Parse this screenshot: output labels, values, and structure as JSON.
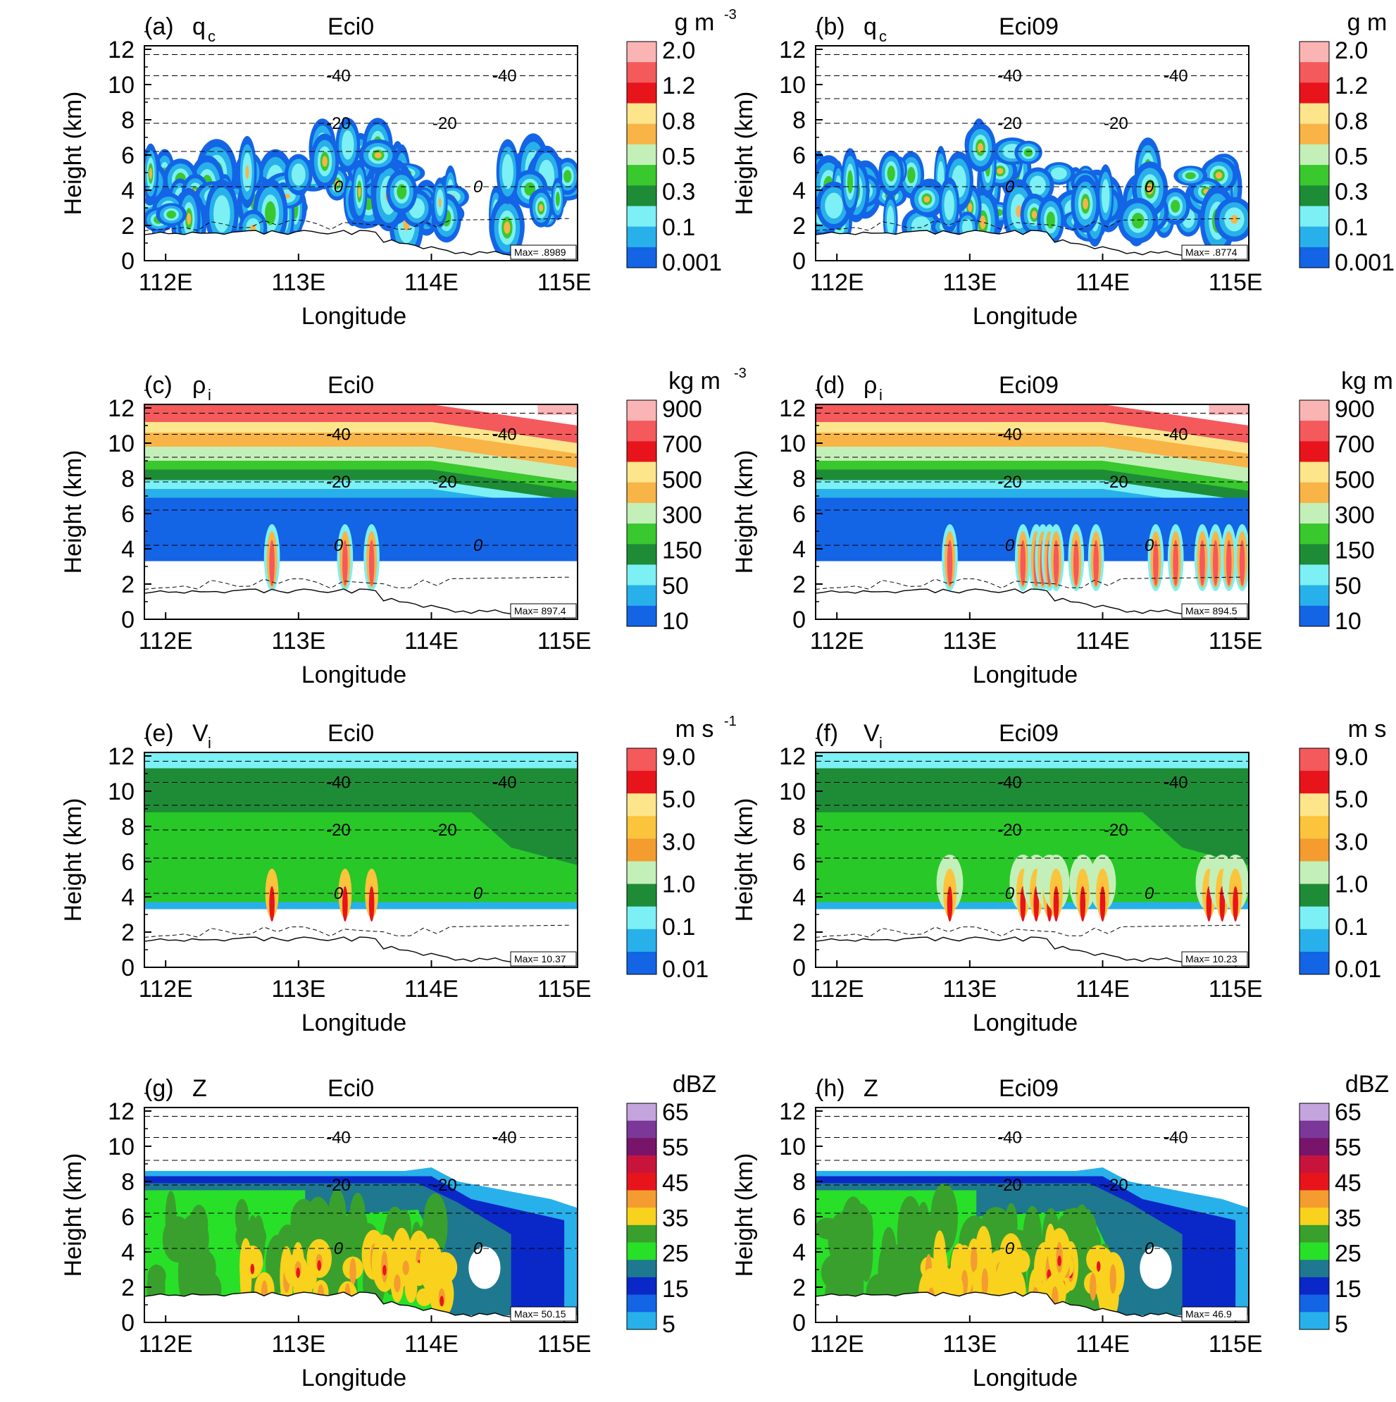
{
  "figure": {
    "panels": [
      {
        "id": "a",
        "tag": "(a)",
        "var": "q",
        "sub": "c",
        "exp": "Eci0",
        "max_label": "Max= .8989",
        "field": "qc",
        "scale": "qc"
      },
      {
        "id": "b",
        "tag": "(b)",
        "var": "q",
        "sub": "c",
        "exp": "Eci09",
        "max_label": "Max= .8774",
        "field": "qc",
        "scale": "qc"
      },
      {
        "id": "c",
        "tag": "(c)",
        "var": "ρ",
        "sub": "i",
        "exp": "Eci0",
        "max_label": "Max= 897.4",
        "field": "rho",
        "scale": "rho"
      },
      {
        "id": "d",
        "tag": "(d)",
        "var": "ρ",
        "sub": "i",
        "exp": "Eci09",
        "max_label": "Max= 894.5",
        "field": "rho",
        "scale": "rho"
      },
      {
        "id": "e",
        "tag": "(e)",
        "var": "V",
        "sub": "i",
        "exp": "Eci0",
        "max_label": "Max= 10.37",
        "field": "vi",
        "scale": "vi"
      },
      {
        "id": "f",
        "tag": "(f)",
        "var": "V",
        "sub": "i",
        "exp": "Eci09",
        "max_label": "Max= 10.23",
        "field": "vi",
        "scale": "vi"
      },
      {
        "id": "g",
        "tag": "(g)",
        "var": "Z",
        "sub": "",
        "exp": "Eci0",
        "max_label": "Max= 50.15",
        "field": "z",
        "scale": "z"
      },
      {
        "id": "h",
        "tag": "(h)",
        "var": "Z",
        "sub": "",
        "exp": "Eci09",
        "max_label": "Max= 46.9",
        "field": "z",
        "scale": "z"
      }
    ],
    "axes": {
      "ylabel": "Height (km)",
      "xlabel": "Longitude",
      "yticks": [
        "0",
        "2",
        "4",
        "6",
        "8",
        "10",
        "12"
      ],
      "xticks": [
        "112E",
        "113E",
        "114E",
        "115E"
      ]
    },
    "isotherm_labels": [
      "-40",
      "-20",
      "0"
    ],
    "colorbars": {
      "qc": {
        "unit": "g m",
        "unit_sup": "-3",
        "labels": [
          "2.0",
          "1.2",
          "0.8",
          "0.5",
          "0.3",
          "0.1",
          "0.001"
        ],
        "colors": [
          "#fbb4b4",
          "#f4595c",
          "#e8141c",
          "#fde58c",
          "#f8b447",
          "#c3f0b8",
          "#39c82d",
          "#1e8c37",
          "#7cf0f4",
          "#28b0ea",
          "#1464e6"
        ]
      },
      "rho": {
        "unit": "kg m",
        "unit_sup": "-3",
        "labels": [
          "900",
          "700",
          "500",
          "300",
          "150",
          "50",
          "10"
        ],
        "colors": [
          "#fbb4b4",
          "#f4595c",
          "#e8141c",
          "#fde58c",
          "#f8b447",
          "#c3f0b8",
          "#39c82d",
          "#1e8c37",
          "#7cf0f4",
          "#28b0ea",
          "#1464e6"
        ]
      },
      "vi": {
        "unit": "m s",
        "unit_sup": "-1",
        "labels": [
          "9.0",
          "5.0",
          "3.0",
          "1.0",
          "0.1",
          "0.01"
        ],
        "colors": [
          "#f4595c",
          "#e8141c",
          "#fde58c",
          "#fbc43c",
          "#f49c30",
          "#c3f0b8",
          "#1e8c37",
          "#7cf0f4",
          "#28b0ea",
          "#1464e6"
        ]
      },
      "z": {
        "unit": "dBZ",
        "unit_sup": "",
        "labels": [
          "65",
          "55",
          "45",
          "35",
          "25",
          "15",
          "5"
        ],
        "colors": [
          "#c4a4dc",
          "#7c3898",
          "#78146a",
          "#c8143c",
          "#e8141c",
          "#f49c30",
          "#f8d21c",
          "#39a02d",
          "#28e028",
          "#1e7890",
          "#0a28c8",
          "#1464e6",
          "#28b0ea"
        ]
      }
    },
    "chart_data": [
      {
        "type": "heatmap",
        "panel": "a",
        "title": "q_c Eci0",
        "unit": "g m^-3",
        "x_range": [
          "112E",
          "115E"
        ],
        "ylim": [
          0,
          12
        ],
        "max": 0.8989,
        "levels": [
          0.001,
          0.1,
          0.3,
          0.5,
          0.8,
          1.2,
          2.0
        ]
      },
      {
        "type": "heatmap",
        "panel": "b",
        "title": "q_c Eci09",
        "unit": "g m^-3",
        "x_range": [
          "112E",
          "115E"
        ],
        "ylim": [
          0,
          12
        ],
        "max": 0.8774,
        "levels": [
          0.001,
          0.1,
          0.3,
          0.5,
          0.8,
          1.2,
          2.0
        ]
      },
      {
        "type": "heatmap",
        "panel": "c",
        "title": "rho_i Eci0",
        "unit": "kg m^-3",
        "x_range": [
          "112E",
          "115E"
        ],
        "ylim": [
          0,
          12
        ],
        "max": 897.4,
        "levels": [
          10,
          50,
          150,
          300,
          500,
          700,
          900
        ]
      },
      {
        "type": "heatmap",
        "panel": "d",
        "title": "rho_i Eci09",
        "unit": "kg m^-3",
        "x_range": [
          "112E",
          "115E"
        ],
        "ylim": [
          0,
          12
        ],
        "max": 894.5,
        "levels": [
          10,
          50,
          150,
          300,
          500,
          700,
          900
        ]
      },
      {
        "type": "heatmap",
        "panel": "e",
        "title": "V_i Eci0",
        "unit": "m s^-1",
        "x_range": [
          "112E",
          "115E"
        ],
        "ylim": [
          0,
          12
        ],
        "max": 10.37,
        "levels": [
          0.01,
          0.1,
          1.0,
          3.0,
          5.0,
          9.0
        ]
      },
      {
        "type": "heatmap",
        "panel": "f",
        "title": "V_i Eci09",
        "unit": "m s^-1",
        "x_range": [
          "112E",
          "115E"
        ],
        "ylim": [
          0,
          12
        ],
        "max": 10.23,
        "levels": [
          0.01,
          0.1,
          1.0,
          3.0,
          5.0,
          9.0
        ]
      },
      {
        "type": "heatmap",
        "panel": "g",
        "title": "Z Eci0",
        "unit": "dBZ",
        "x_range": [
          "112E",
          "115E"
        ],
        "ylim": [
          0,
          12
        ],
        "max": 50.15,
        "levels": [
          5,
          15,
          25,
          35,
          45,
          55,
          65
        ]
      },
      {
        "type": "heatmap",
        "panel": "h",
        "title": "Z Eci09",
        "unit": "dBZ",
        "x_range": [
          "112E",
          "115E"
        ],
        "ylim": [
          0,
          12
        ],
        "max": 46.9,
        "levels": [
          5,
          15,
          25,
          35,
          45,
          55,
          65
        ]
      }
    ]
  }
}
